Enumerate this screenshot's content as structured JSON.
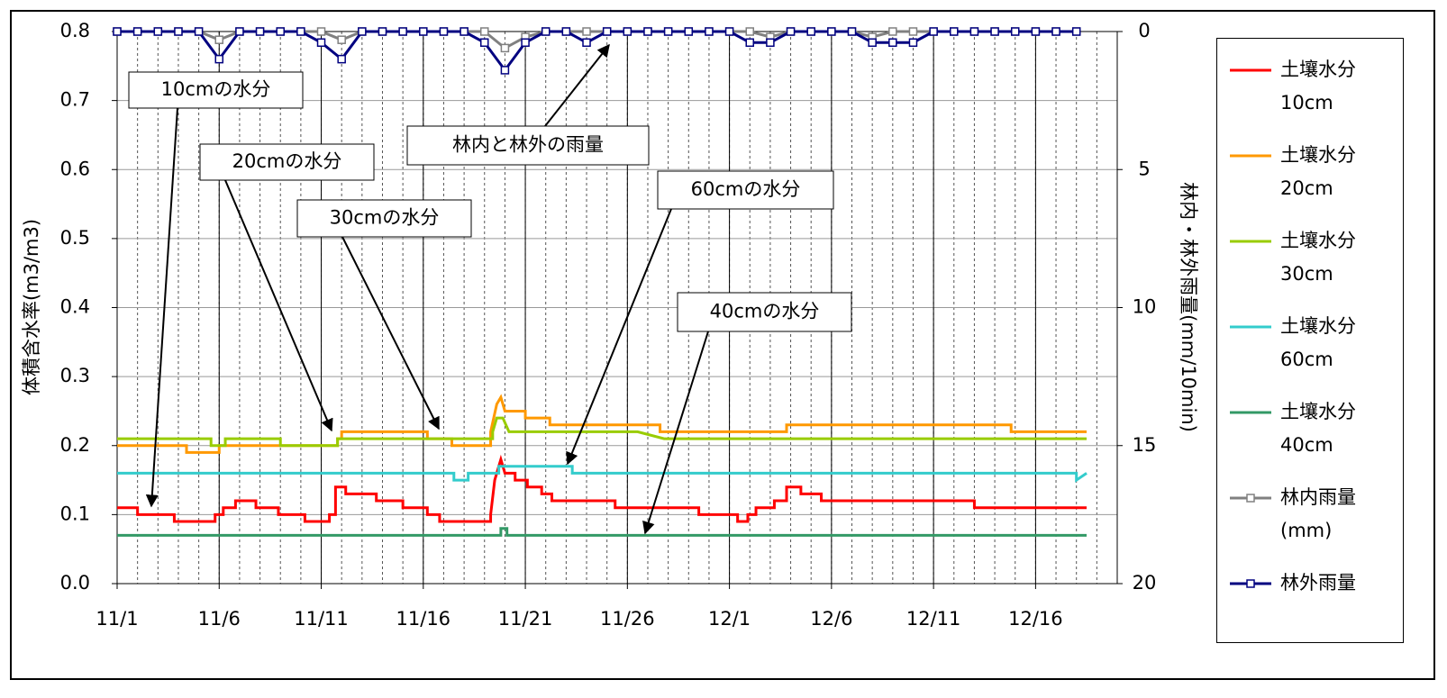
{
  "chart_data": {
    "type": "line",
    "y_title": "体積含水率(m3/m3)",
    "y2_title": "林内・林外雨量(mm/10min)",
    "xlim": [
      0,
      49
    ],
    "xticks": [
      {
        "value": 0,
        "label": "11/1"
      },
      {
        "value": 5,
        "label": "11/6"
      },
      {
        "value": 10,
        "label": "11/11"
      },
      {
        "value": 15,
        "label": "11/16"
      },
      {
        "value": 20,
        "label": "11/21"
      },
      {
        "value": 25,
        "label": "11/26"
      },
      {
        "value": 30,
        "label": "12/1"
      },
      {
        "value": 35,
        "label": "12/6"
      },
      {
        "value": 40,
        "label": "12/11"
      },
      {
        "value": 45,
        "label": "12/16"
      }
    ],
    "xminorticks": [
      0,
      1,
      2,
      3,
      4,
      5,
      6,
      7,
      8,
      9,
      10,
      11,
      12,
      13,
      14,
      15,
      16,
      17,
      18,
      19,
      20,
      21,
      22,
      23,
      24,
      25,
      26,
      27,
      28,
      29,
      30,
      31,
      32,
      33,
      34,
      35,
      36,
      37,
      38,
      39,
      40,
      41,
      42,
      43,
      44,
      45,
      46,
      47,
      48
    ],
    "ylim": [
      0,
      0.8
    ],
    "yticks": [
      {
        "value": 0,
        "label": "0.0"
      },
      0.1,
      0.2,
      0.3,
      0.4,
      0.5,
      0.6,
      0.7,
      0.8
    ],
    "y2lim": [
      0,
      20
    ],
    "y2_reversed": true,
    "y2ticks": [
      0,
      5,
      10,
      15,
      20
    ],
    "grid": true,
    "legend": "right",
    "series": [
      {
        "name": "土壤水分\n10cm",
        "color": "#ff0000",
        "x": [
          0,
          1,
          1,
          2.8,
          2.8,
          4.8,
          4.8,
          5.2,
          5.2,
          5.8,
          5.8,
          6.8,
          6.8,
          7.9,
          7.9,
          9.2,
          9.2,
          10.4,
          10.4,
          10.7,
          10.7,
          11.2,
          11.2,
          12.7,
          12.7,
          14.0,
          14.0,
          15.2,
          15.2,
          15.8,
          15.8,
          18.3,
          18.3,
          18.5,
          18.8,
          19.0,
          19.5,
          19.5,
          20.1,
          20.1,
          20.8,
          20.8,
          21.3,
          21.3,
          24.4,
          24.4,
          28.5,
          28.5,
          30.4,
          30.4,
          30.9,
          30.9,
          31.3,
          31.3,
          32.2,
          32.2,
          32.8,
          32.8,
          33.5,
          33.5,
          34.5,
          34.5,
          42.0,
          42.0,
          47.5
        ],
        "values": [
          0.11,
          0.11,
          0.1,
          0.1,
          0.09,
          0.09,
          0.1,
          0.1,
          0.11,
          0.11,
          0.12,
          0.12,
          0.11,
          0.11,
          0.1,
          0.1,
          0.09,
          0.09,
          0.1,
          0.1,
          0.14,
          0.14,
          0.13,
          0.13,
          0.12,
          0.12,
          0.11,
          0.11,
          0.1,
          0.1,
          0.09,
          0.09,
          0.1,
          0.15,
          0.18,
          0.16,
          0.16,
          0.15,
          0.15,
          0.14,
          0.14,
          0.13,
          0.13,
          0.12,
          0.12,
          0.11,
          0.11,
          0.1,
          0.1,
          0.09,
          0.09,
          0.1,
          0.1,
          0.11,
          0.11,
          0.12,
          0.12,
          0.14,
          0.14,
          0.13,
          0.13,
          0.12,
          0.12,
          0.11,
          0.11
        ]
      },
      {
        "name": "土壤水分\n20cm",
        "color": "#ff9900",
        "x": [
          0,
          3.4,
          3.4,
          5.0,
          5.0,
          10.8,
          10.8,
          11.0,
          11.0,
          15.2,
          15.2,
          16.4,
          16.4,
          18.3,
          18.3,
          18.6,
          18.8,
          19.0,
          20.0,
          20.0,
          21.2,
          21.2,
          26.6,
          26.6,
          32.8,
          32.8,
          43.8,
          43.8,
          47.5
        ],
        "values": [
          0.2,
          0.2,
          0.19,
          0.19,
          0.2,
          0.2,
          0.21,
          0.21,
          0.22,
          0.22,
          0.21,
          0.21,
          0.2,
          0.2,
          0.22,
          0.26,
          0.27,
          0.25,
          0.25,
          0.24,
          0.24,
          0.23,
          0.23,
          0.22,
          0.22,
          0.23,
          0.23,
          0.22,
          0.22
        ]
      },
      {
        "name": "土壤水分\n30cm",
        "color": "#99cc00",
        "x": [
          0,
          4.6,
          4.6,
          5.3,
          5.3,
          8.0,
          8.0,
          10.8,
          10.8,
          18.4,
          18.4,
          18.6,
          18.9,
          19.2,
          25.5,
          26.8,
          47.5
        ],
        "values": [
          0.21,
          0.21,
          0.2,
          0.2,
          0.21,
          0.21,
          0.2,
          0.2,
          0.21,
          0.21,
          0.22,
          0.24,
          0.24,
          0.22,
          0.22,
          0.21,
          0.21
        ]
      },
      {
        "name": "土壤水分\n60cm",
        "color": "#33cccc",
        "x": [
          0,
          16.5,
          16.5,
          17.2,
          17.2,
          18.7,
          18.7,
          22.3,
          22.3,
          47.0,
          47.0,
          47.5
        ],
        "values": [
          0.16,
          0.16,
          0.15,
          0.15,
          0.16,
          0.16,
          0.17,
          0.17,
          0.16,
          0.16,
          0.15,
          0.16
        ]
      },
      {
        "name": "土壤水分\n40cm",
        "color": "#339966",
        "x": [
          0,
          18.8,
          18.8,
          19.1,
          19.1,
          47.5
        ],
        "values": [
          0.07,
          0.07,
          0.08,
          0.08,
          0.07,
          0.07
        ]
      },
      {
        "name": "林内雨量\n(mm)",
        "color": "#808080",
        "axis": "y2",
        "marker": "square",
        "x": [
          0,
          1,
          2,
          3,
          4,
          5,
          6,
          7,
          8,
          9,
          10,
          11,
          12,
          13,
          14,
          15,
          16,
          17,
          18,
          19,
          20,
          21,
          22,
          23,
          24,
          25,
          26,
          27,
          28,
          29,
          30,
          31,
          32,
          33,
          34,
          35,
          36,
          37,
          38,
          39,
          40,
          41,
          42,
          43,
          44,
          45,
          46,
          47
        ],
        "values": [
          0,
          0,
          0,
          0,
          0,
          0.3,
          0,
          0,
          0,
          0,
          0,
          0.3,
          0,
          0,
          0,
          0,
          0,
          0,
          0,
          0.6,
          0.2,
          0,
          0,
          0,
          0,
          0,
          0,
          0,
          0,
          0,
          0,
          0,
          0.2,
          0,
          0,
          0,
          0,
          0.2,
          0,
          0,
          0,
          0,
          0,
          0,
          0,
          0,
          0,
          0
        ]
      },
      {
        "name": "林外雨量",
        "color": "#000080",
        "axis": "y2",
        "marker": "square",
        "x": [
          0,
          1,
          2,
          3,
          4,
          5,
          6,
          7,
          8,
          9,
          10,
          11,
          12,
          13,
          14,
          15,
          16,
          17,
          18,
          19,
          20,
          21,
          22,
          23,
          24,
          25,
          26,
          27,
          28,
          29,
          30,
          31,
          32,
          33,
          34,
          35,
          36,
          37,
          38,
          39,
          40,
          41,
          42,
          43,
          44,
          45,
          46,
          47
        ],
        "values": [
          0,
          0,
          0,
          0,
          0,
          1.0,
          0,
          0,
          0,
          0,
          0.4,
          1.0,
          0,
          0,
          0,
          0,
          0,
          0,
          0.4,
          1.4,
          0.4,
          0,
          0,
          0.4,
          0,
          0,
          0,
          0,
          0,
          0,
          0,
          0.4,
          0.4,
          0,
          0,
          0,
          0,
          0.4,
          0.4,
          0.4,
          0,
          0,
          0,
          0,
          0,
          0,
          0,
          0
        ]
      }
    ],
    "annotations": [
      "10cmの水分",
      "20cmの水分",
      "30cmの水分",
      "林内と林外の雨量",
      "60cmの水分",
      "40cmの水分"
    ]
  }
}
